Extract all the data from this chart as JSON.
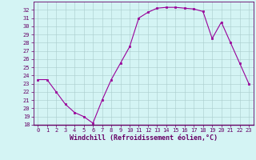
{
  "x": [
    0,
    1,
    2,
    3,
    4,
    5,
    6,
    7,
    8,
    9,
    10,
    11,
    12,
    13,
    14,
    15,
    16,
    17,
    18,
    19,
    20,
    21,
    22,
    23
  ],
  "y": [
    23.5,
    23.5,
    22.0,
    20.5,
    19.5,
    19.0,
    18.2,
    21.0,
    23.5,
    25.5,
    27.5,
    31.0,
    31.7,
    32.2,
    32.3,
    32.3,
    32.2,
    32.1,
    31.8,
    28.5,
    30.5,
    28.0,
    25.5,
    23.0
  ],
  "line_color": "#990099",
  "marker": "s",
  "marker_size": 2.0,
  "bg_color": "#d4f4f4",
  "grid_color": "#aacccc",
  "xlabel": "Windchill (Refroidissement éolien,°C)",
  "xlabel_color": "#660066",
  "tick_color": "#660066",
  "spine_color": "#660066",
  "ylim": [
    18,
    33
  ],
  "xlim": [
    -0.5,
    23.5
  ],
  "yticks": [
    18,
    19,
    20,
    21,
    22,
    23,
    24,
    25,
    26,
    27,
    28,
    29,
    30,
    31,
    32
  ],
  "xticks": [
    0,
    1,
    2,
    3,
    4,
    5,
    6,
    7,
    8,
    9,
    10,
    11,
    12,
    13,
    14,
    15,
    16,
    17,
    18,
    19,
    20,
    21,
    22,
    23
  ],
  "tick_fontsize": 5.0,
  "xlabel_fontsize": 6.0
}
